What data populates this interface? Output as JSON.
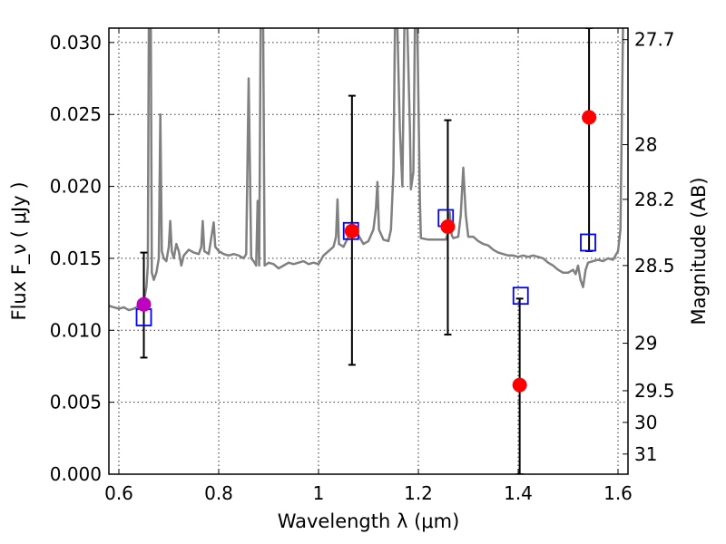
{
  "chart_data": {
    "type": "scatter",
    "xlabel": "Wavelength  λ (μm)",
    "ylabel": "Flux  F_ν  ( μJy )",
    "ylabel_right": "Magnitude (AB)",
    "xlim": [
      0.58,
      1.62
    ],
    "ylim": [
      0.0,
      0.031
    ],
    "grid": true,
    "x_ticks": [
      {
        "value": 0.6,
        "label": "0.6"
      },
      {
        "value": 0.8,
        "label": "0.8"
      },
      {
        "value": 1.0,
        "label": "1"
      },
      {
        "value": 1.2,
        "label": "1.2"
      },
      {
        "value": 1.4,
        "label": "1.4"
      },
      {
        "value": 1.6,
        "label": "1.6"
      }
    ],
    "y_ticks": [
      {
        "value": 0.0,
        "label": "0.000"
      },
      {
        "value": 0.005,
        "label": "0.005"
      },
      {
        "value": 0.01,
        "label": "0.010"
      },
      {
        "value": 0.015,
        "label": "0.015"
      },
      {
        "value": 0.02,
        "label": "0.020"
      },
      {
        "value": 0.025,
        "label": "0.025"
      },
      {
        "value": 0.03,
        "label": "0.030"
      }
    ],
    "right_ticks": [
      {
        "flux": 0.0302,
        "label": "27.7"
      },
      {
        "flux": 0.0229,
        "label": "28"
      },
      {
        "flux": 0.0191,
        "label": "28.2"
      },
      {
        "flux": 0.0145,
        "label": "28.5"
      },
      {
        "flux": 0.0091,
        "label": "29"
      },
      {
        "flux": 0.0058,
        "label": "29.5"
      },
      {
        "flux": 0.0036,
        "label": "30"
      },
      {
        "flux": 0.0014,
        "label": "31"
      }
    ],
    "series": [
      {
        "kind": "spectrum",
        "color": "#808080",
        "points": [
          [
            0.58,
            0.0117
          ],
          [
            0.59,
            0.0116
          ],
          [
            0.6,
            0.0115
          ],
          [
            0.61,
            0.0116
          ],
          [
            0.62,
            0.0114
          ],
          [
            0.63,
            0.0115
          ],
          [
            0.64,
            0.0117
          ],
          [
            0.645,
            0.0119
          ],
          [
            0.65,
            0.012
          ],
          [
            0.655,
            0.013
          ],
          [
            0.658,
            0.0145
          ],
          [
            0.66,
            0.031
          ],
          [
            0.662,
            0.031
          ],
          [
            0.664,
            0.031
          ],
          [
            0.666,
            0.014
          ],
          [
            0.67,
            0.0135
          ],
          [
            0.675,
            0.014
          ],
          [
            0.68,
            0.015
          ],
          [
            0.683,
            0.025
          ],
          [
            0.686,
            0.0155
          ],
          [
            0.69,
            0.015
          ],
          [
            0.695,
            0.0148
          ],
          [
            0.7,
            0.0158
          ],
          [
            0.703,
            0.0176
          ],
          [
            0.706,
            0.0155
          ],
          [
            0.71,
            0.015
          ],
          [
            0.715,
            0.016
          ],
          [
            0.72,
            0.0155
          ],
          [
            0.725,
            0.0145
          ],
          [
            0.73,
            0.0152
          ],
          [
            0.74,
            0.0156
          ],
          [
            0.75,
            0.0154
          ],
          [
            0.76,
            0.0153
          ],
          [
            0.765,
            0.0158
          ],
          [
            0.768,
            0.0176
          ],
          [
            0.771,
            0.0155
          ],
          [
            0.78,
            0.0153
          ],
          [
            0.79,
            0.0175
          ],
          [
            0.793,
            0.0158
          ],
          [
            0.8,
            0.0155
          ],
          [
            0.81,
            0.0153
          ],
          [
            0.82,
            0.0152
          ],
          [
            0.83,
            0.0153
          ],
          [
            0.84,
            0.0152
          ],
          [
            0.85,
            0.015
          ],
          [
            0.855,
            0.0153
          ],
          [
            0.86,
            0.0275
          ],
          [
            0.865,
            0.015
          ],
          [
            0.87,
            0.0148
          ],
          [
            0.875,
            0.0145
          ],
          [
            0.878,
            0.019
          ],
          [
            0.881,
            0.0145
          ],
          [
            0.884,
            0.031
          ],
          [
            0.886,
            0.031
          ],
          [
            0.889,
            0.031
          ],
          [
            0.892,
            0.0145
          ],
          [
            0.9,
            0.0147
          ],
          [
            0.91,
            0.0146
          ],
          [
            0.92,
            0.0143
          ],
          [
            0.93,
            0.0145
          ],
          [
            0.94,
            0.0147
          ],
          [
            0.95,
            0.0146
          ],
          [
            0.96,
            0.0147
          ],
          [
            0.97,
            0.0148
          ],
          [
            0.98,
            0.0146
          ],
          [
            0.99,
            0.0147
          ],
          [
            1.0,
            0.0146
          ],
          [
            1.01,
            0.0152
          ],
          [
            1.02,
            0.0155
          ],
          [
            1.03,
            0.0158
          ],
          [
            1.035,
            0.0165
          ],
          [
            1.038,
            0.0191
          ],
          [
            1.041,
            0.016
          ],
          [
            1.05,
            0.0158
          ],
          [
            1.06,
            0.0165
          ],
          [
            1.07,
            0.0168
          ],
          [
            1.08,
            0.0166
          ],
          [
            1.09,
            0.016
          ],
          [
            1.1,
            0.0162
          ],
          [
            1.11,
            0.017
          ],
          [
            1.115,
            0.0185
          ],
          [
            1.118,
            0.0203
          ],
          [
            1.121,
            0.017
          ],
          [
            1.13,
            0.0163
          ],
          [
            1.14,
            0.0162
          ],
          [
            1.145,
            0.017
          ],
          [
            1.15,
            0.021
          ],
          [
            1.153,
            0.031
          ],
          [
            1.158,
            0.031
          ],
          [
            1.163,
            0.024
          ],
          [
            1.168,
            0.02
          ],
          [
            1.172,
            0.031
          ],
          [
            1.178,
            0.031
          ],
          [
            1.183,
            0.024
          ],
          [
            1.185,
            0.0198
          ],
          [
            1.19,
            0.021
          ],
          [
            1.193,
            0.031
          ],
          [
            1.198,
            0.031
          ],
          [
            1.203,
            0.019
          ],
          [
            1.205,
            0.0164
          ],
          [
            1.22,
            0.0163
          ],
          [
            1.24,
            0.0163
          ],
          [
            1.255,
            0.0163
          ],
          [
            1.26,
            0.0168
          ],
          [
            1.263,
            0.0182
          ],
          [
            1.267,
            0.0166
          ],
          [
            1.27,
            0.0164
          ],
          [
            1.28,
            0.0165
          ],
          [
            1.285,
            0.018
          ],
          [
            1.29,
            0.0213
          ],
          [
            1.295,
            0.018
          ],
          [
            1.3,
            0.0165
          ],
          [
            1.31,
            0.0165
          ],
          [
            1.32,
            0.0162
          ],
          [
            1.33,
            0.016
          ],
          [
            1.34,
            0.0159
          ],
          [
            1.35,
            0.0156
          ],
          [
            1.36,
            0.0154
          ],
          [
            1.37,
            0.0153
          ],
          [
            1.38,
            0.0152
          ],
          [
            1.39,
            0.0152
          ],
          [
            1.4,
            0.0151
          ],
          [
            1.41,
            0.0152
          ],
          [
            1.42,
            0.0151
          ],
          [
            1.43,
            0.0152
          ],
          [
            1.44,
            0.0151
          ],
          [
            1.45,
            0.015
          ],
          [
            1.46,
            0.0147
          ],
          [
            1.47,
            0.0145
          ],
          [
            1.48,
            0.0142
          ],
          [
            1.49,
            0.014
          ],
          [
            1.5,
            0.014
          ],
          [
            1.51,
            0.0142
          ],
          [
            1.515,
            0.0139
          ],
          [
            1.52,
            0.0145
          ],
          [
            1.525,
            0.0135
          ],
          [
            1.53,
            0.013
          ],
          [
            1.535,
            0.0142
          ],
          [
            1.54,
            0.0147
          ],
          [
            1.55,
            0.0148
          ],
          [
            1.56,
            0.0149
          ],
          [
            1.57,
            0.0148
          ],
          [
            1.58,
            0.015
          ],
          [
            1.59,
            0.0149
          ],
          [
            1.6,
            0.0155
          ],
          [
            1.605,
            0.017
          ],
          [
            1.61,
            0.031
          ]
        ]
      },
      {
        "kind": "model-photometry",
        "marker": "open-square",
        "color": "#0000ff",
        "points": [
          {
            "x": 0.65,
            "y": 0.0109
          },
          {
            "x": 1.065,
            "y": 0.0169
          },
          {
            "x": 1.255,
            "y": 0.0178
          },
          {
            "x": 1.405,
            "y": 0.0124
          },
          {
            "x": 1.54,
            "y": 0.0161
          }
        ]
      },
      {
        "kind": "observed-photometry",
        "marker": "filled-circle",
        "points": [
          {
            "x": 0.65,
            "y": 0.0118,
            "err_low": 0.0081,
            "err_high": 0.0154,
            "color": "#bf00bf"
          },
          {
            "x": 1.067,
            "y": 0.0169,
            "err_low": 0.0076,
            "err_high": 0.0263,
            "color": "#ff0000"
          },
          {
            "x": 1.259,
            "y": 0.0172,
            "err_low": 0.0097,
            "err_high": 0.0246,
            "color": "#ff0000"
          },
          {
            "x": 1.403,
            "y": 0.0062,
            "err_low": 0.0,
            "err_high": 0.0122,
            "color": "#ff0000"
          },
          {
            "x": 1.542,
            "y": 0.0248,
            "err_low": 0.0155,
            "err_high": 0.031,
            "color": "#ff0000"
          }
        ]
      }
    ]
  }
}
